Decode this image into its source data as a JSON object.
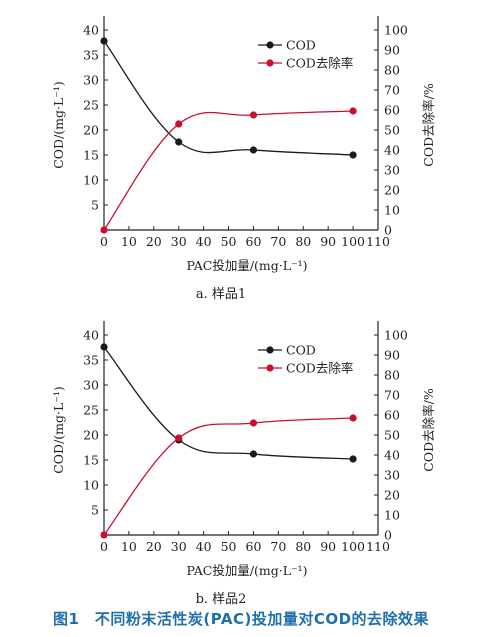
{
  "figure_caption": "图1　不同粉末活性炭(PAC)投加量对COD的去除效果",
  "colors": {
    "cod": "#1a1a1a",
    "removal": "#c8102e",
    "caption": "#1f6fa8",
    "axis": "#222222"
  },
  "chart_data": [
    {
      "type": "line",
      "caption": "a. 样品1",
      "xlabel": "PAC投加量/(mg·L⁻¹)",
      "ylabel": "COD/(mg·L⁻¹)",
      "y2label": "COD去除率/%",
      "xlim": [
        0,
        110
      ],
      "ylim": [
        0,
        42
      ],
      "y2lim": [
        0,
        105
      ],
      "x_ticks": [
        "0",
        "10",
        "20",
        "30",
        "40",
        "50",
        "60",
        "70",
        "80",
        "90",
        "100",
        "110"
      ],
      "y_ticks": [
        "5",
        "10",
        "15",
        "20",
        "25",
        "30",
        "35",
        "40"
      ],
      "y2_ticks": [
        "0",
        "10",
        "20",
        "30",
        "40",
        "50",
        "60",
        "70",
        "80",
        "90",
        "100"
      ],
      "legend": {
        "position": "top-right",
        "items": [
          "COD",
          "COD去除率"
        ]
      },
      "x": [
        0,
        30,
        60,
        100
      ],
      "series": [
        {
          "name": "COD",
          "axis": "left",
          "values": [
            37.8,
            17.6,
            16.0,
            15.0
          ]
        },
        {
          "name": "COD去除率",
          "axis": "right",
          "values": [
            0,
            53,
            57.5,
            59.5
          ]
        }
      ]
    },
    {
      "type": "line",
      "caption": "b. 样品2",
      "xlabel": "PAC投加量/(mg·L⁻¹)",
      "ylabel": "COD/(mg·L⁻¹)",
      "y2label": "COD去除率/%",
      "xlim": [
        0,
        110
      ],
      "ylim": [
        0,
        42
      ],
      "y2lim": [
        0,
        105
      ],
      "x_ticks": [
        "0",
        "10",
        "20",
        "30",
        "40",
        "50",
        "60",
        "70",
        "80",
        "90",
        "100",
        "110"
      ],
      "y_ticks": [
        "5",
        "10",
        "15",
        "20",
        "25",
        "30",
        "35",
        "40"
      ],
      "y2_ticks": [
        "0",
        "10",
        "20",
        "30",
        "40",
        "50",
        "60",
        "70",
        "80",
        "90",
        "100"
      ],
      "legend": {
        "position": "top-right",
        "items": [
          "COD",
          "COD去除率"
        ]
      },
      "x": [
        0,
        30,
        60,
        100
      ],
      "series": [
        {
          "name": "COD",
          "axis": "left",
          "values": [
            37.6,
            19.0,
            16.2,
            15.2
          ]
        },
        {
          "name": "COD去除率",
          "axis": "right",
          "values": [
            0,
            48.5,
            56,
            58.5
          ]
        }
      ]
    }
  ]
}
